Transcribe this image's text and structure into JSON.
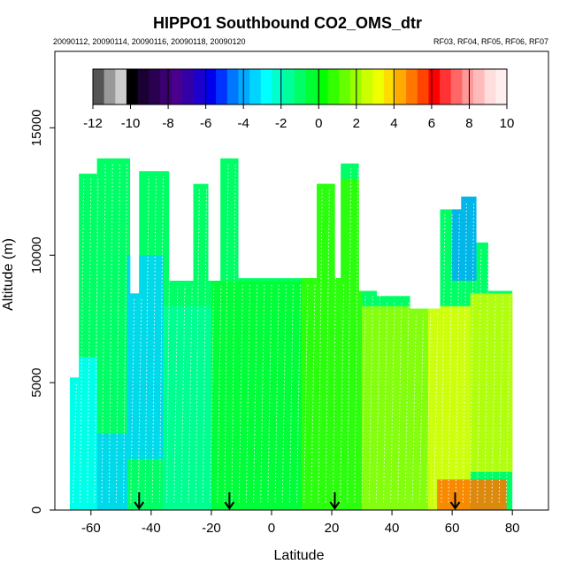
{
  "chart_data": {
    "type": "heatmap",
    "title": "HIPPO1 Southbound CO2_OMS_dtr",
    "subtitle_left": "20090112, 20090114, 20090116, 20090118, 20090120",
    "subtitle_right": "RF03, RF04, RF05, RF06, RF07",
    "xlabel": "Latitude",
    "ylabel": "Altitude (m)",
    "xlim": [
      -72,
      92
    ],
    "ylim": [
      0,
      18000
    ],
    "xticks": [
      -60,
      -40,
      -20,
      0,
      20,
      40,
      60,
      80
    ],
    "xtick_labels": [
      "-60",
      "-40",
      "-20",
      "0",
      "20",
      "40",
      "60",
      "80"
    ],
    "yticks": [
      0,
      5000,
      10000,
      15000
    ],
    "ytick_labels": [
      "0",
      "5000",
      "10000",
      "15000"
    ],
    "colorbar": {
      "ticks": [
        -12,
        -10,
        -8,
        -6,
        -4,
        -2,
        0,
        2,
        4,
        6,
        8,
        10
      ],
      "tick_labels": [
        "-12",
        "-10",
        "-8",
        "-6",
        "-4",
        "-2",
        "0",
        "2",
        "4",
        "6",
        "8",
        "10"
      ],
      "colors": [
        "#555555",
        "#999999",
        "#cccccc",
        "#000000",
        "#1a0033",
        "#2a0050",
        "#3a0070",
        "#4a008c",
        "#3300a8",
        "#1e00cc",
        "#0000ee",
        "#0033ff",
        "#0077ff",
        "#00aaff",
        "#00d4ff",
        "#00ffff",
        "#00ffcc",
        "#00ff99",
        "#00ff66",
        "#00ff33",
        "#00ff00",
        "#33ff00",
        "#66ff00",
        "#99ff00",
        "#ccff00",
        "#eeff00",
        "#ffdd00",
        "#ffaa00",
        "#ff7700",
        "#ff4400",
        "#ff0000",
        "#ff3333",
        "#ff6666",
        "#ff9999",
        "#ffbbbb",
        "#ffdddd",
        "#ffeeee"
      ]
    },
    "profile_envelope": [
      {
        "lat_from": -67,
        "lat_to": -64,
        "alt_top": 5200
      },
      {
        "lat_from": -64,
        "lat_to": -58,
        "alt_top": 13200
      },
      {
        "lat_from": -58,
        "lat_to": -47,
        "alt_top": 13800
      },
      {
        "lat_from": -47,
        "lat_to": -44,
        "alt_top": 8500
      },
      {
        "lat_from": -44,
        "lat_to": -34,
        "alt_top": 13300
      },
      {
        "lat_from": -34,
        "lat_to": -26,
        "alt_top": 9000
      },
      {
        "lat_from": -26,
        "lat_to": -21,
        "alt_top": 12800
      },
      {
        "lat_from": -21,
        "lat_to": -17,
        "alt_top": 9000
      },
      {
        "lat_from": -17,
        "lat_to": -11,
        "alt_top": 13800
      },
      {
        "lat_from": -11,
        "lat_to": 15,
        "alt_top": 9100
      },
      {
        "lat_from": 15,
        "lat_to": 21,
        "alt_top": 12800
      },
      {
        "lat_from": 21,
        "lat_to": 23,
        "alt_top": 9100
      },
      {
        "lat_from": 23,
        "lat_to": 29,
        "alt_top": 13600
      },
      {
        "lat_from": 29,
        "lat_to": 35,
        "alt_top": 8600
      },
      {
        "lat_from": 35,
        "lat_to": 46,
        "alt_top": 8400
      },
      {
        "lat_from": 46,
        "lat_to": 56,
        "alt_top": 7900
      },
      {
        "lat_from": 56,
        "lat_to": 63,
        "alt_top": 11800
      },
      {
        "lat_from": 63,
        "lat_to": 68,
        "alt_top": 12300
      },
      {
        "lat_from": 68,
        "lat_to": 72,
        "alt_top": 10500
      },
      {
        "lat_from": 72,
        "lat_to": 80,
        "alt_top": 8600
      }
    ],
    "value_regions": [
      {
        "lat_from": -67,
        "lat_to": -58,
        "alt_from": 0,
        "alt_to": 6000,
        "value": -3
      },
      {
        "lat_from": -58,
        "lat_to": -48,
        "alt_from": 0,
        "alt_to": 3000,
        "value": -3.5
      },
      {
        "lat_from": -48,
        "lat_to": -36,
        "alt_from": 2000,
        "alt_to": 10000,
        "value": -3.5
      },
      {
        "lat_from": -36,
        "lat_to": -20,
        "alt_from": 0,
        "alt_to": 8000,
        "value": -1.5
      },
      {
        "lat_from": -20,
        "lat_to": 10,
        "alt_from": 0,
        "alt_to": 9000,
        "value": -0.5
      },
      {
        "lat_from": 10,
        "lat_to": 30,
        "alt_from": 0,
        "alt_to": 13000,
        "value": 0.5
      },
      {
        "lat_from": 30,
        "lat_to": 52,
        "alt_from": 0,
        "alt_to": 8000,
        "value": 2
      },
      {
        "lat_from": 52,
        "lat_to": 66,
        "alt_from": 0,
        "alt_to": 8000,
        "value": 3
      },
      {
        "lat_from": 60,
        "lat_to": 68,
        "alt_from": 9000,
        "alt_to": 12300,
        "value": -4
      },
      {
        "lat_from": 66,
        "lat_to": 80,
        "alt_from": 1500,
        "alt_to": 8500,
        "value": 2.5
      },
      {
        "lat_from": 55,
        "lat_to": 78,
        "alt_from": 0,
        "alt_to": 1200,
        "value": 5
      }
    ],
    "arrow_latitudes": [
      -44,
      -14,
      21,
      61
    ]
  }
}
